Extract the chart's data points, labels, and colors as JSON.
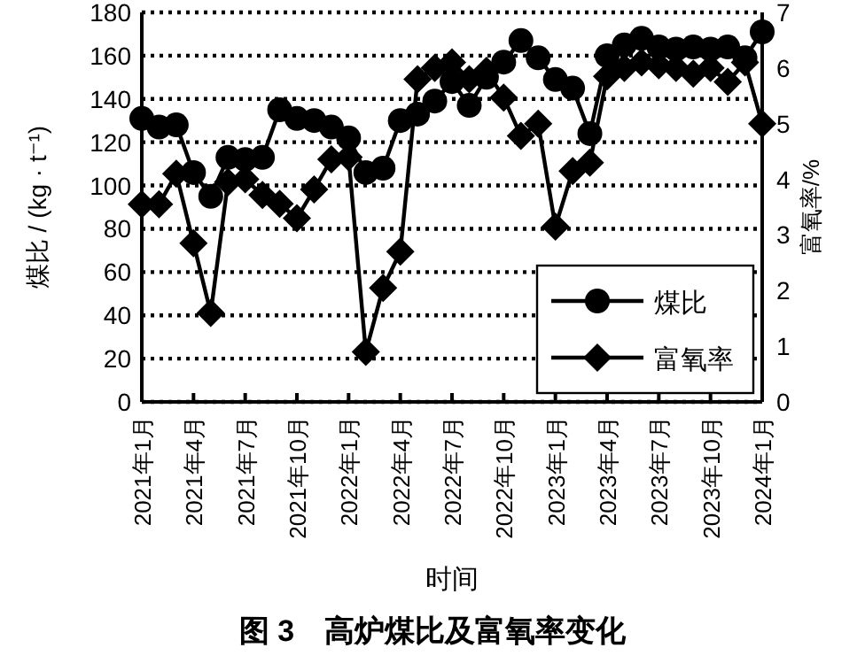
{
  "chart_data": {
    "type": "line",
    "title": "图 3　高炉煤比及富氧率变化",
    "xlabel": "时间",
    "ylabel": "煤比 / (kg · t⁻¹)",
    "y2label": "富氧率/%",
    "x": [
      "2021-01",
      "2021-02",
      "2021-03",
      "2021-04",
      "2021-05",
      "2021-06",
      "2021-07",
      "2021-08",
      "2021-09",
      "2021-10",
      "2021-11",
      "2021-12",
      "2022-01",
      "2022-02",
      "2022-03",
      "2022-04",
      "2022-05",
      "2022-06",
      "2022-07",
      "2022-08",
      "2022-09",
      "2022-10",
      "2022-11",
      "2022-12",
      "2023-01",
      "2023-02",
      "2023-03",
      "2023-04",
      "2023-05",
      "2023-06",
      "2023-07",
      "2023-08",
      "2023-09",
      "2023-10",
      "2023-11",
      "2023-12",
      "2024-01"
    ],
    "series": [
      {
        "name": "煤比",
        "color": "#000000",
        "marker": "circle",
        "values": [
          131,
          127,
          128,
          106,
          95,
          113,
          112,
          113,
          135,
          131,
          130,
          127,
          122,
          106,
          108,
          130,
          133,
          139,
          148,
          137,
          150,
          157,
          167,
          159,
          149,
          145,
          124,
          160,
          165,
          168,
          164,
          163,
          164,
          163,
          164,
          159,
          171
        ]
      },
      {
        "name": "富氧率",
        "color": "#000000",
        "marker": "diamond",
        "axis": "y2",
        "values": [
          3.55,
          3.55,
          4.1,
          2.85,
          1.6,
          3.95,
          4.0,
          3.72,
          3.56,
          3.3,
          3.82,
          4.36,
          4.4,
          0.9,
          2.05,
          2.7,
          5.8,
          6.0,
          6.1,
          5.8,
          5.95,
          5.47,
          4.78,
          5.0,
          3.15,
          4.15,
          4.3,
          5.85,
          6.0,
          6.1,
          6.05,
          6.0,
          5.9,
          6.0,
          5.75,
          6.1,
          5.0
        ]
      }
    ],
    "xlim": [
      "2021-01",
      "2024-01"
    ],
    "xticks": [
      {
        "value": "2021-01",
        "label": "2021年1月"
      },
      {
        "value": "2021-04",
        "label": "2021年4月"
      },
      {
        "value": "2021-07",
        "label": "2021年7月"
      },
      {
        "value": "2021-10",
        "label": "2021年10月"
      },
      {
        "value": "2022-01",
        "label": "2022年1月"
      },
      {
        "value": "2022-04",
        "label": "2022年4月"
      },
      {
        "value": "2022-07",
        "label": "2022年7月"
      },
      {
        "value": "2022-10",
        "label": "2022年10月"
      },
      {
        "value": "2023-01",
        "label": "2023年1月"
      },
      {
        "value": "2023-04",
        "label": "2023年4月"
      },
      {
        "value": "2023-07",
        "label": "2023年7月"
      },
      {
        "value": "2023-10",
        "label": "2023年10月"
      },
      {
        "value": "2024-01",
        "label": "2024年1月"
      }
    ],
    "ylim": [
      0,
      180
    ],
    "yticks": [
      0,
      20,
      40,
      60,
      80,
      100,
      120,
      140,
      160,
      180
    ],
    "y2lim": [
      0,
      7
    ],
    "y2ticks": [
      0,
      1,
      2,
      3,
      4,
      5,
      6,
      7
    ],
    "grid": "y",
    "legend": "bottom right",
    "line_style": "solid"
  }
}
